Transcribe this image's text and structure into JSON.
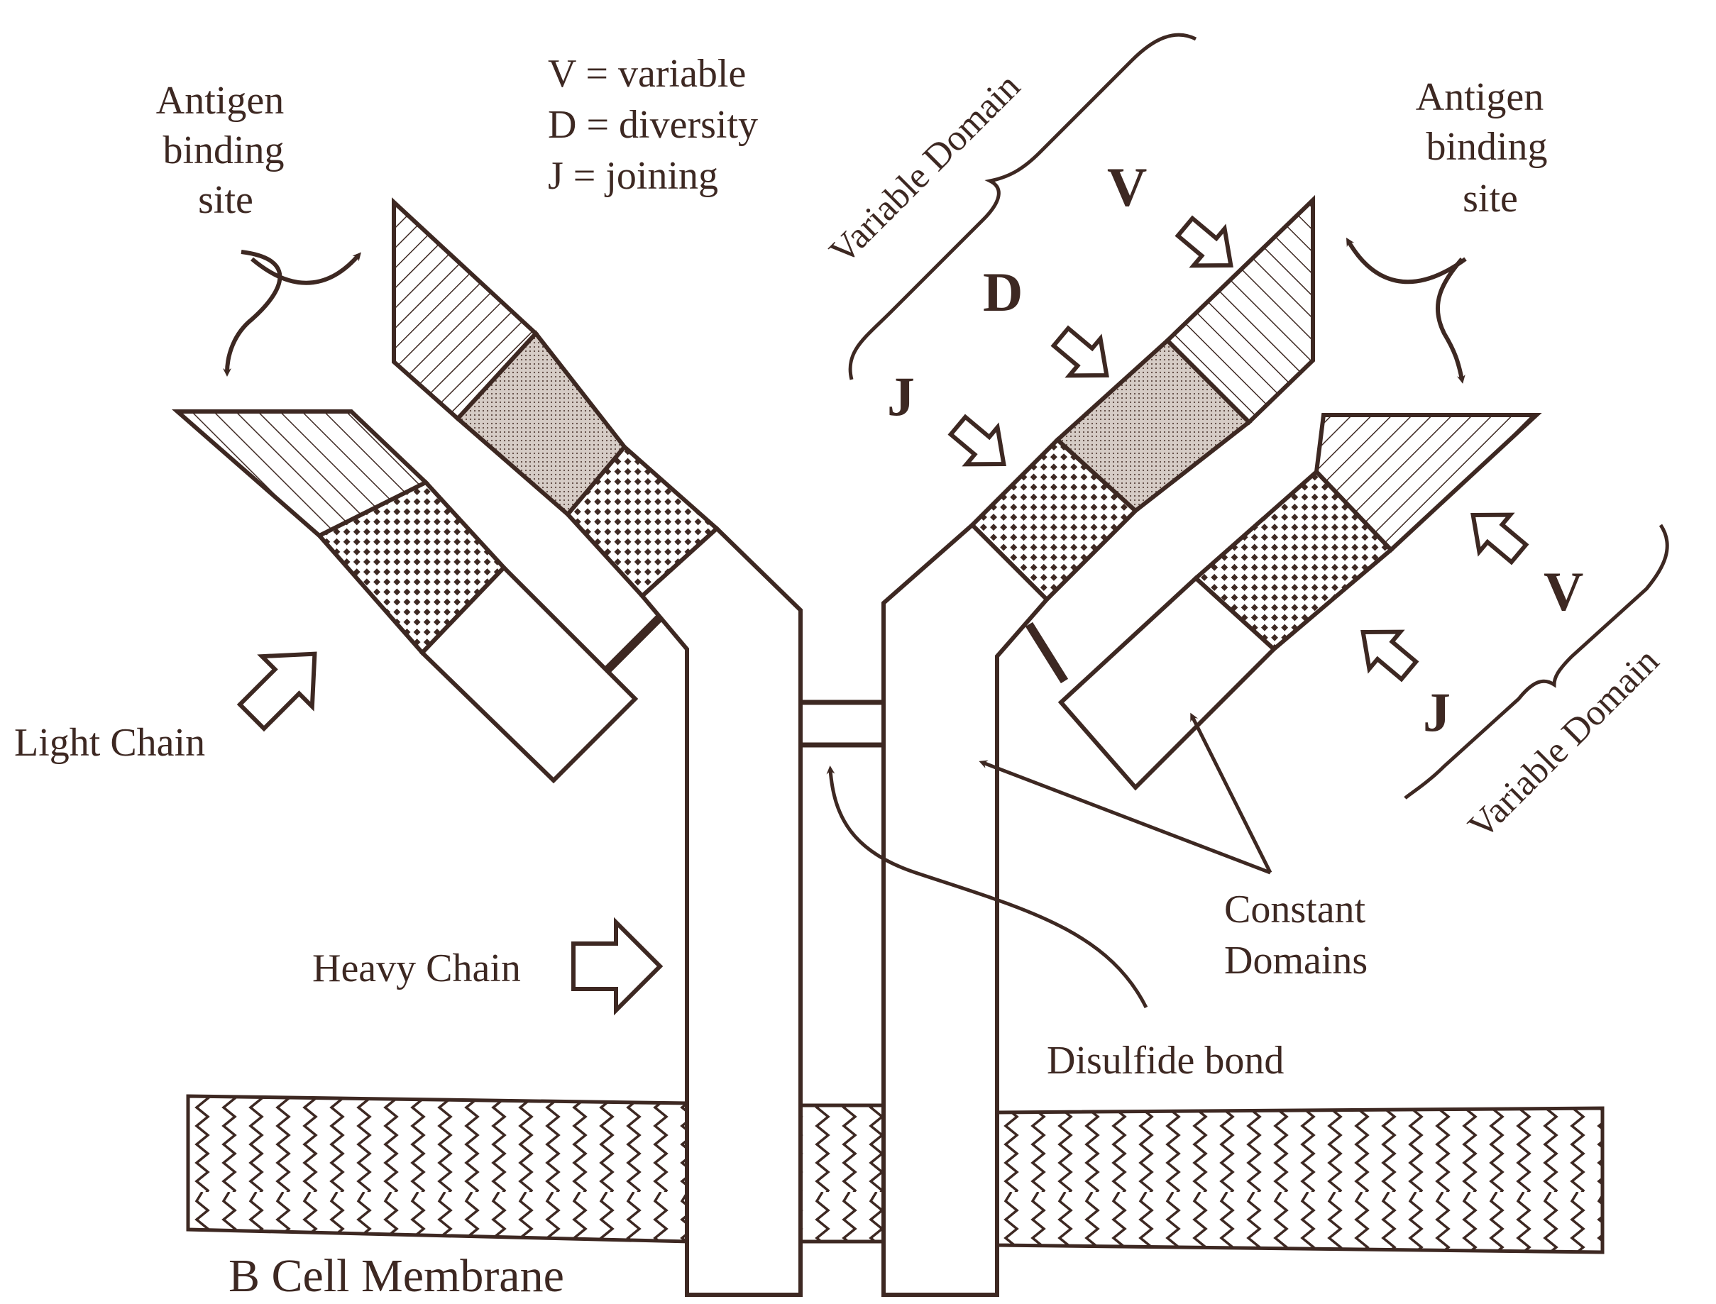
{
  "colors": {
    "ink": "#3d2822",
    "background": "#ffffff",
    "stipple": "#c9bdb6"
  },
  "legend": {
    "line_v": "V = variable",
    "line_d": "D = diversity",
    "line_j": "J = joining"
  },
  "labels": {
    "antigen_left": [
      "Antigen",
      "binding",
      "site"
    ],
    "antigen_right": [
      "Antigen",
      "binding",
      "site"
    ],
    "variable_domain_top": "Variable Domain",
    "variable_domain_bottom": "Variable Domain",
    "v_top": "V",
    "d_top": "D",
    "j_top": "J",
    "v_right": "V",
    "j_right": "J",
    "light_chain": "Light Chain",
    "heavy_chain": "Heavy Chain",
    "constant_domains": [
      "Constant",
      "Domains"
    ],
    "disulfide_bond": "Disulfide bond",
    "membrane": "B Cell Membrane"
  }
}
